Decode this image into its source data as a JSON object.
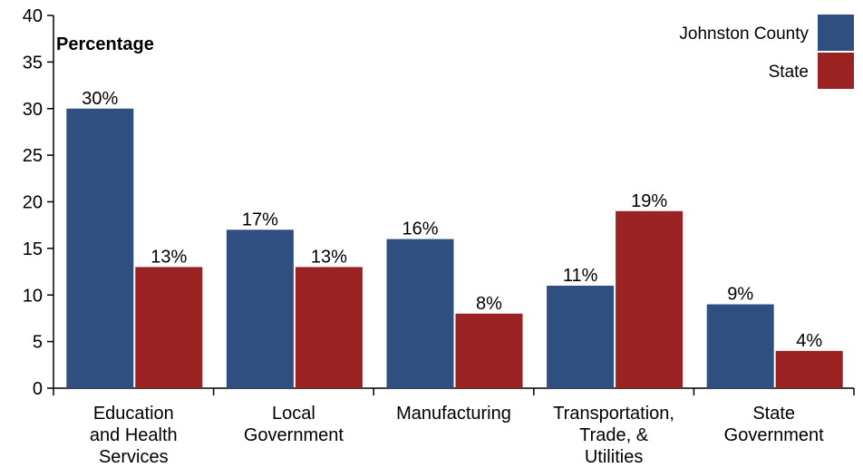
{
  "chart_data": {
    "type": "bar",
    "ylabel": "Percentage",
    "ylim": [
      0,
      40
    ],
    "yticks": [
      0,
      5,
      10,
      15,
      20,
      25,
      30,
      35,
      40
    ],
    "categories": [
      [
        "Education",
        "and Health",
        "Services"
      ],
      [
        "Local",
        "Government"
      ],
      [
        "Manufacturing"
      ],
      [
        "Transportation,",
        "Trade, &",
        "Utilities"
      ],
      [
        "State",
        "Government"
      ]
    ],
    "series": [
      {
        "name": "Johnston County",
        "color": "#2e4f7f",
        "values": [
          30,
          17,
          16,
          11,
          9
        ],
        "labels": [
          "30%",
          "17%",
          "16%",
          "11%",
          "9%"
        ]
      },
      {
        "name": "State",
        "color": "#9b2222",
        "values": [
          13,
          13,
          8,
          19,
          4
        ],
        "labels": [
          "13%",
          "13%",
          "8%",
          "19%",
          "4%"
        ]
      }
    ],
    "legend_position": "top-right",
    "grid": false
  }
}
